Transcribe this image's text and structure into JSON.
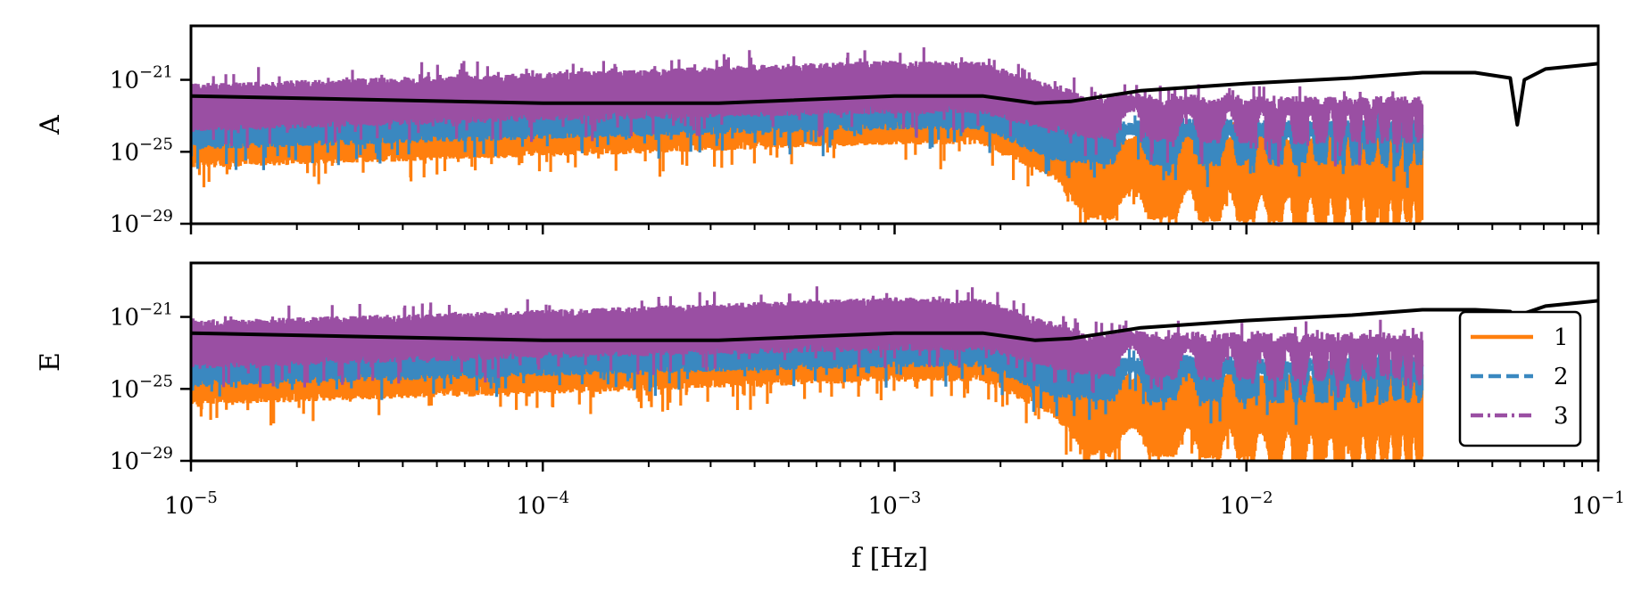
{
  "chart_data": [
    {
      "type": "line",
      "panel": "A",
      "ylabel": "A",
      "yscale": "log",
      "ylim": [
        1e-29,
        1e-18
      ],
      "yticks": [
        {
          "base": "10",
          "exp": "−29"
        },
        {
          "base": "10",
          "exp": "−25"
        },
        {
          "base": "10",
          "exp": "−21"
        }
      ],
      "xscale": "log",
      "xlim": [
        1e-05,
        0.1
      ],
      "series": [
        {
          "name": "1",
          "color": "#ff7f0e",
          "style": "solid",
          "band_log10": {
            "f": [
              -5,
              -4,
              -3,
              -2.75,
              -2.55,
              -2.45,
              -2.2,
              -1.8,
              -1.5
            ],
            "top": [
              -24,
              -23.2,
              -22.2,
              -22.2,
              -23.5,
              -24.6,
              -24.2,
              -24.5,
              -24.2
            ],
            "bottom": [
              -25.6,
              -25,
              -24.3,
              -24.3,
              -26.2,
              -28.5,
              -28.5,
              -28.9,
              -28.9
            ]
          }
        },
        {
          "name": "2",
          "color": "#3a88c0",
          "style": "dashed",
          "band_log10": {
            "f": [
              -5,
              -4,
              -3,
              -2.75,
              -2.55,
              -2.45,
              -2.2,
              -1.8,
              -1.5
            ],
            "top": [
              -23.2,
              -22.4,
              -21.5,
              -21.5,
              -22.7,
              -23.7,
              -23.4,
              -23.6,
              -23.4
            ],
            "bottom": [
              -24.6,
              -24,
              -23.5,
              -23.5,
              -25.2,
              -25.4,
              -25.5,
              -25.5,
              -25.5
            ]
          }
        },
        {
          "name": "3",
          "color": "#9a4fa3",
          "style": "dashdot",
          "band_log10": {
            "f": [
              -5,
              -4,
              -3,
              -2.75,
              -2.55,
              -2.45,
              -2.2,
              -1.8,
              -1.5
            ],
            "top": [
              -21.5,
              -20.9,
              -20.2,
              -20.3,
              -21.6,
              -22.0,
              -22.1,
              -22.2,
              -22.2
            ],
            "bottom": [
              -23.6,
              -23.0,
              -22.6,
              -22.6,
              -23.6,
              -24.0,
              -24.2,
              -24.3,
              -24.3
            ]
          }
        }
      ],
      "sensitivity_log10": {
        "f": [
          -5,
          -4.5,
          -4,
          -3.5,
          -3,
          -2.75,
          -2.6,
          -2.5,
          -2.3,
          -2.0,
          -1.7,
          -1.5,
          -1.35,
          -1.25,
          -1.23,
          -1.21,
          -1.15,
          -1.0
        ],
        "y": [
          -21.9,
          -22.1,
          -22.3,
          -22.3,
          -21.9,
          -21.9,
          -22.3,
          -22.2,
          -21.6,
          -21.2,
          -20.9,
          -20.6,
          -20.6,
          -20.9,
          -23.5,
          -21.0,
          -20.4,
          -20.1
        ]
      }
    },
    {
      "type": "line",
      "panel": "E",
      "ylabel": "E",
      "yscale": "log",
      "ylim": [
        1e-29,
        1e-18
      ],
      "yticks": [
        {
          "base": "10",
          "exp": "−29"
        },
        {
          "base": "10",
          "exp": "−25"
        },
        {
          "base": "10",
          "exp": "−21"
        }
      ],
      "xscale": "log",
      "xlim": [
        1e-05,
        0.1
      ],
      "xlabel": "f [Hz]",
      "xticks": [
        {
          "base": "10",
          "exp": "−5"
        },
        {
          "base": "10",
          "exp": "−4"
        },
        {
          "base": "10",
          "exp": "−3"
        },
        {
          "base": "10",
          "exp": "−2"
        },
        {
          "base": "10",
          "exp": "−1"
        }
      ],
      "series": [
        {
          "name": "1",
          "color": "#ff7f0e",
          "style": "solid",
          "band_log10": {
            "f": [
              -5,
              -4,
              -3,
              -2.75,
              -2.55,
              -2.45,
              -2.2,
              -1.8,
              -1.5
            ],
            "top": [
              -24,
              -23.2,
              -22.2,
              -22.2,
              -23.5,
              -24.6,
              -24.2,
              -24.5,
              -24.2
            ],
            "bottom": [
              -25.6,
              -25,
              -24.3,
              -24.3,
              -26.2,
              -28.5,
              -28.5,
              -28.9,
              -28.9
            ]
          }
        },
        {
          "name": "2",
          "color": "#3a88c0",
          "style": "dashed",
          "band_log10": {
            "f": [
              -5,
              -4,
              -3,
              -2.75,
              -2.55,
              -2.45,
              -2.2,
              -1.8,
              -1.5
            ],
            "top": [
              -23.2,
              -22.4,
              -21.5,
              -21.5,
              -22.7,
              -23.7,
              -23.4,
              -23.6,
              -23.4
            ],
            "bottom": [
              -24.6,
              -24,
              -23.5,
              -23.5,
              -25.2,
              -25.4,
              -25.5,
              -25.5,
              -25.5
            ]
          }
        },
        {
          "name": "3",
          "color": "#9a4fa3",
          "style": "dashdot",
          "band_log10": {
            "f": [
              -5,
              -4,
              -3,
              -2.75,
              -2.55,
              -2.45,
              -2.2,
              -1.8,
              -1.5
            ],
            "top": [
              -21.5,
              -20.9,
              -20.2,
              -20.3,
              -21.6,
              -22.0,
              -22.1,
              -22.2,
              -22.2
            ],
            "bottom": [
              -23.6,
              -23.0,
              -22.6,
              -22.6,
              -23.6,
              -24.0,
              -24.2,
              -24.3,
              -24.3
            ]
          }
        }
      ],
      "sensitivity_log10": {
        "f": [
          -5,
          -4.5,
          -4,
          -3.5,
          -3,
          -2.75,
          -2.6,
          -2.5,
          -2.3,
          -2.0,
          -1.7,
          -1.5,
          -1.35,
          -1.25,
          -1.23,
          -1.21,
          -1.15,
          -1.0
        ],
        "y": [
          -21.9,
          -22.1,
          -22.3,
          -22.3,
          -21.9,
          -21.9,
          -22.3,
          -22.2,
          -21.6,
          -21.2,
          -20.9,
          -20.6,
          -20.6,
          -20.7,
          -21.1,
          -20.8,
          -20.4,
          -20.1
        ]
      },
      "legend": {
        "placement": "lower-right",
        "entries": [
          "1",
          "2",
          "3"
        ]
      }
    }
  ]
}
